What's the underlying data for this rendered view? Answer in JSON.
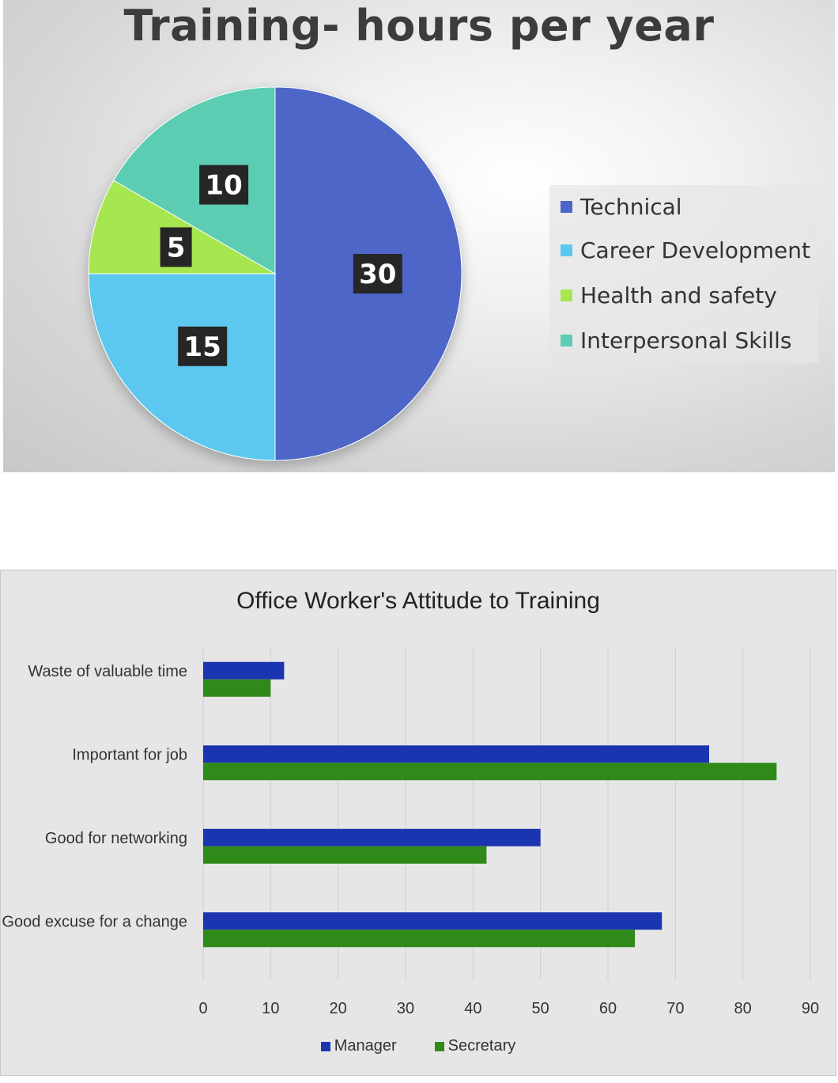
{
  "chart_data": [
    {
      "type": "pie",
      "title": "Training- hours per year",
      "categories": [
        "Technical",
        "Career Development",
        "Health and safety",
        "Interpersonal Skills"
      ],
      "values": [
        30,
        15,
        5,
        10
      ],
      "colors": [
        "#4d66c8",
        "#5bc8f0",
        "#a6e650",
        "#5ccdb3"
      ],
      "data_labels": [
        "30",
        "15",
        "5",
        "10"
      ],
      "legend_placement": "right"
    },
    {
      "type": "bar",
      "orientation": "horizontal",
      "title": "Office Worker's Attitude to Training",
      "categories": [
        "Waste of valuable time",
        "Important for job",
        "Good for networking",
        "Good excuse for a change"
      ],
      "series": [
        {
          "name": "Manager",
          "values": [
            12,
            75,
            50,
            68
          ],
          "color": "#1b35b0"
        },
        {
          "name": "Secretary",
          "values": [
            10,
            85,
            42,
            64
          ],
          "color": "#2f8a1a"
        }
      ],
      "xlim": [
        0,
        90
      ],
      "ticks": [
        0,
        10,
        20,
        30,
        40,
        50,
        60,
        70,
        80,
        90
      ],
      "grid": true,
      "legend_placement": "bottom"
    }
  ]
}
